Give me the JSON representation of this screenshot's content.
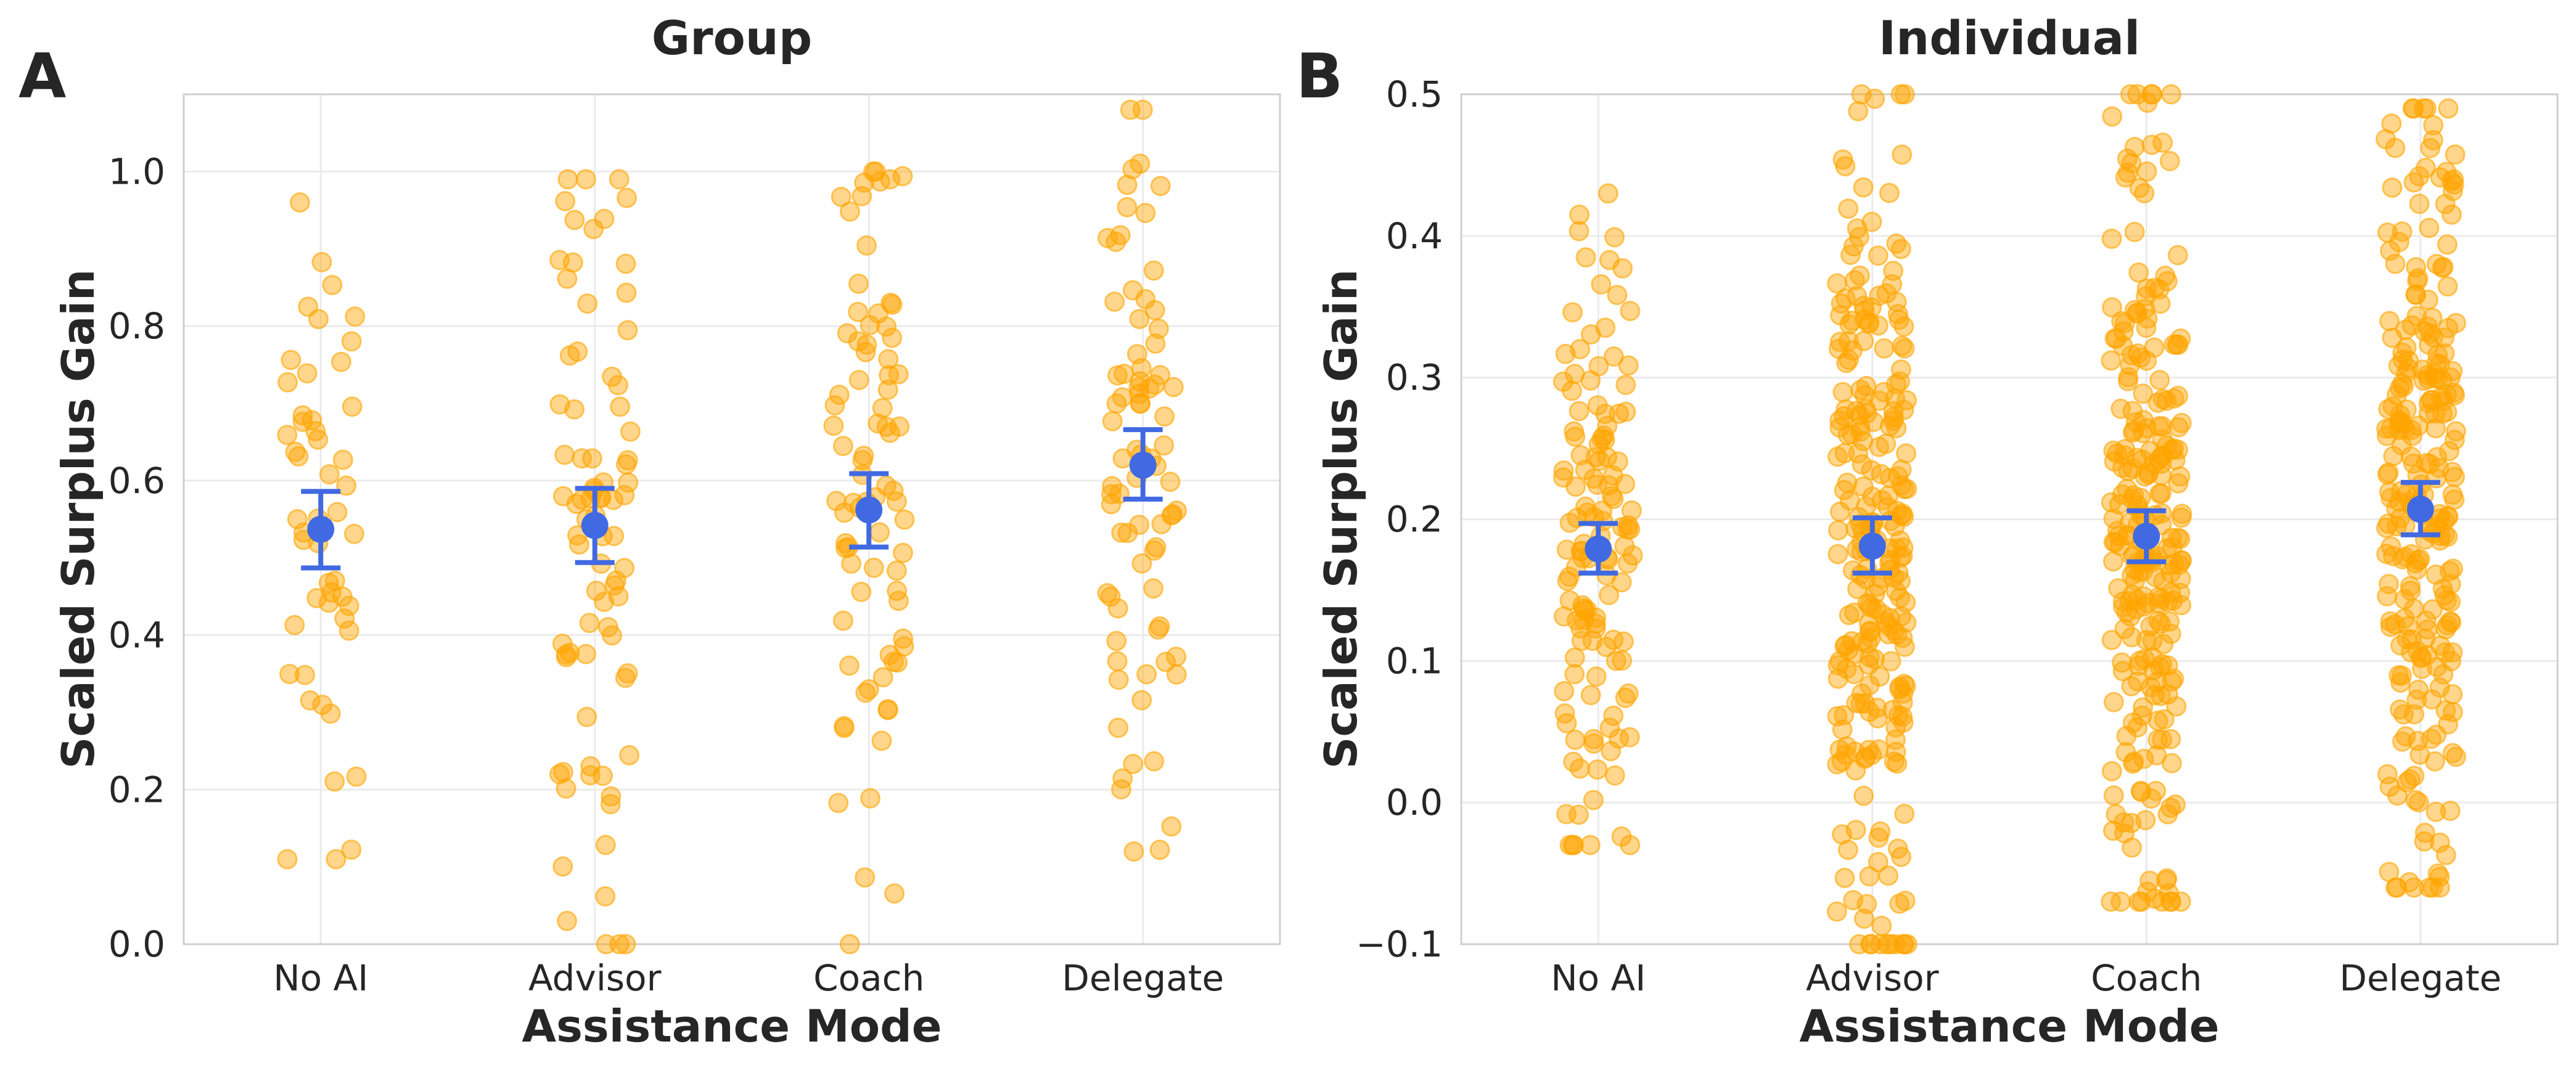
{
  "chart_data": [
    {
      "panel": "A",
      "type": "scatter",
      "title": "Group",
      "xlabel": "Assistance Mode",
      "ylabel": "Scaled Surplus Gain",
      "ylim": [
        0.0,
        1.1
      ],
      "yticks": [
        0.0,
        0.2,
        0.4,
        0.6,
        0.8,
        1.0
      ],
      "ytick_labels": [
        "0.0",
        "0.2",
        "0.4",
        "0.6",
        "0.8",
        "1.0"
      ],
      "grid": true,
      "categories": [
        "No AI",
        "Advisor",
        "Coach",
        "Delegate"
      ],
      "means": [
        0.537,
        0.542,
        0.562,
        0.62
      ],
      "ci_low": [
        0.487,
        0.494,
        0.514,
        0.576
      ],
      "ci_high": [
        0.586,
        0.59,
        0.609,
        0.666
      ],
      "points_per_category": [
        50,
        80,
        80,
        80
      ],
      "point_ranges": [
        [
          0.11,
          0.96
        ],
        [
          0.0,
          0.99
        ],
        [
          0.0,
          1.0
        ],
        [
          0.12,
          1.08
        ]
      ],
      "point_color": "#ffa500",
      "mean_color": "#4169e1"
    },
    {
      "panel": "B",
      "type": "scatter",
      "title": "Individual",
      "xlabel": "Assistance Mode",
      "ylabel": "Scaled Surplus Gain",
      "ylim": [
        -0.1,
        0.5
      ],
      "yticks": [
        -0.1,
        0.0,
        0.1,
        0.2,
        0.3,
        0.4,
        0.5
      ],
      "ytick_labels": [
        "−0.1",
        "0.0",
        "0.1",
        "0.2",
        "0.3",
        "0.4",
        "0.5"
      ],
      "grid": true,
      "categories": [
        "No AI",
        "Advisor",
        "Coach",
        "Delegate"
      ],
      "means": [
        0.179,
        0.181,
        0.188,
        0.207
      ],
      "ci_low": [
        0.162,
        0.162,
        0.17,
        0.189
      ],
      "ci_high": [
        0.197,
        0.201,
        0.206,
        0.226
      ],
      "points_per_category": [
        130,
        260,
        260,
        260
      ],
      "point_ranges": [
        [
          -0.03,
          0.43
        ],
        [
          -0.1,
          0.5
        ],
        [
          -0.07,
          0.5
        ],
        [
          -0.06,
          0.49
        ]
      ],
      "point_color": "#ffa500",
      "mean_color": "#4169e1"
    }
  ]
}
